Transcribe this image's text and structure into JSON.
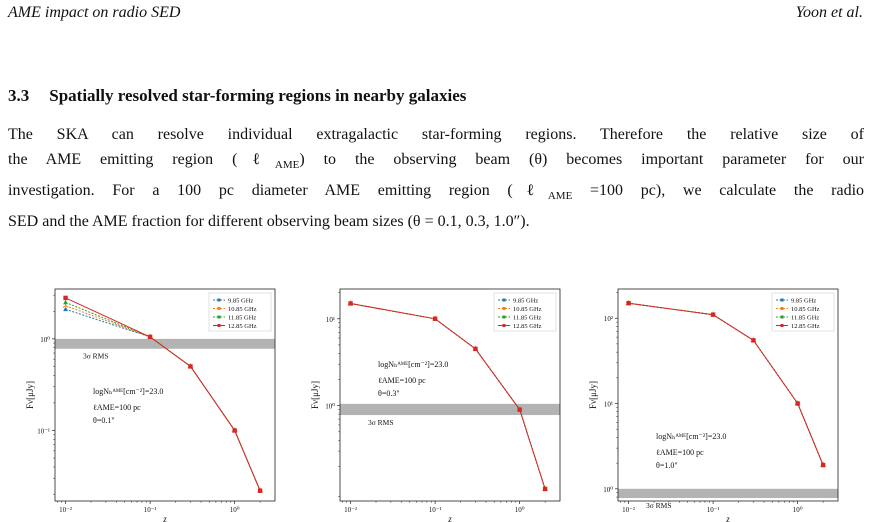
{
  "header": {
    "left": "AME impact on radio SED",
    "right": "Yoon et al."
  },
  "section": {
    "number": "3.3",
    "title": "Spatially resolved star-forming regions in nearby galaxies"
  },
  "paragraph": {
    "l1": "The SKA can resolve individual extragalactic star-forming regions.  Therefore the relative size of",
    "l2a": "the AME emitting region (ℓ",
    "l2sub": "AME",
    "l2b": ") to the observing beam (θ) becomes important parameter for our",
    "l3a": "investigation.  For a 100 pc diameter AME emitting region (ℓ",
    "l3sub": "AME",
    "l3b": " =100 pc), we calculate the radio",
    "l4": "SED and the AME fraction for different observing beam sizes (θ = 0.1, 0.3, 1.0″)."
  },
  "chart_data": [
    {
      "type": "line",
      "xscale": "log",
      "yscale": "log",
      "xlim": [
        0.0075,
        3.0
      ],
      "ylim": [
        0.017,
        3.5
      ],
      "xticks": [
        0.01,
        0.1,
        1
      ],
      "xticklabels": [
        "10⁻²",
        "10⁻¹",
        "10⁰"
      ],
      "yticks": [
        0.1,
        1
      ],
      "yticklabels": [
        "10⁻¹",
        "10⁰"
      ],
      "xlabel": "z",
      "ylabel": "Fν[μJy]",
      "rms_band": [
        0.78,
        1.0
      ],
      "rms_label": "3σ RMS",
      "annotation": [
        "logNₕᴬᴹᴱ[cm⁻²]=23.0",
        "ℓAME=100 pc",
        "θ=0.1\""
      ],
      "legend": "upper right",
      "series": [
        {
          "name": "9.85 GHz",
          "color": "#1f77b4",
          "marker": "triangle",
          "x": [
            0.01,
            0.1,
            0.3,
            1,
            2
          ],
          "y": [
            2.1,
            1.05,
            0.5,
            0.1,
            0.022
          ]
        },
        {
          "name": "10.85 GHz",
          "color": "#ff7f0e",
          "marker": "tri",
          "x": [
            0.01,
            0.1,
            0.3,
            1,
            2
          ],
          "y": [
            2.3,
            1.05,
            0.5,
            0.1,
            0.022
          ]
        },
        {
          "name": "11.85 GHz",
          "color": "#2ca02c",
          "marker": "triangle",
          "x": [
            0.01,
            0.1,
            0.3,
            1,
            2
          ],
          "y": [
            2.5,
            1.05,
            0.5,
            0.1,
            0.022
          ]
        },
        {
          "name": "12.85 GHz",
          "color": "#d62728",
          "marker": "square",
          "x": [
            0.01,
            0.1,
            0.3,
            1,
            2
          ],
          "y": [
            2.8,
            1.05,
            0.5,
            0.1,
            0.022
          ]
        }
      ]
    },
    {
      "type": "line",
      "xscale": "log",
      "yscale": "log",
      "xlim": [
        0.0075,
        3.0
      ],
      "ylim": [
        0.08,
        22
      ],
      "xticks": [
        0.01,
        0.1,
        1
      ],
      "xticklabels": [
        "10⁻²",
        "10⁻¹",
        "10⁰"
      ],
      "yticks": [
        1,
        10
      ],
      "yticklabels": [
        "10⁰",
        "10¹"
      ],
      "xlabel": "z",
      "ylabel": "Fν[μJy]",
      "rms_band": [
        0.78,
        1.05
      ],
      "rms_label": "3σ RMS",
      "annotation": [
        "logNₕᴬᴹᴱ[cm⁻²]=23.0",
        "ℓAME=100 pc",
        "θ=0.3\""
      ],
      "legend": "upper right",
      "series": [
        {
          "name": "9.85 GHz",
          "color": "#1f77b4",
          "marker": "triangle",
          "x": [
            0.01,
            0.1,
            0.3,
            1,
            2
          ],
          "y": [
            15,
            10,
            4.5,
            0.9,
            0.11
          ]
        },
        {
          "name": "10.85 GHz",
          "color": "#ff7f0e",
          "marker": "tri",
          "x": [
            0.01,
            0.1,
            0.3,
            1,
            2
          ],
          "y": [
            15,
            10,
            4.5,
            0.9,
            0.11
          ]
        },
        {
          "name": "11.85 GHz",
          "color": "#2ca02c",
          "marker": "triangle",
          "x": [
            0.01,
            0.1,
            0.3,
            1,
            2
          ],
          "y": [
            15,
            10,
            4.5,
            0.9,
            0.11
          ]
        },
        {
          "name": "12.85 GHz",
          "color": "#d62728",
          "marker": "square",
          "x": [
            0.01,
            0.1,
            0.3,
            1,
            2
          ],
          "y": [
            15,
            10,
            4.5,
            0.9,
            0.11
          ]
        }
      ]
    },
    {
      "type": "line",
      "xscale": "log",
      "yscale": "log",
      "xlim": [
        0.0075,
        3.0
      ],
      "ylim": [
        0.72,
        220
      ],
      "xticks": [
        0.01,
        0.1,
        1
      ],
      "xticklabels": [
        "10⁻²",
        "10⁻¹",
        "10⁰"
      ],
      "yticks": [
        1,
        10,
        100
      ],
      "yticklabels": [
        "10⁰",
        "10¹",
        "10²"
      ],
      "xlabel": "z",
      "ylabel": "Fν[μJy]",
      "rms_band": [
        0.78,
        1.0
      ],
      "rms_label": "3σ RMS",
      "annotation": [
        "logNₕᴬᴹᴱ[cm⁻²]=23.0",
        "ℓAME=100 pc",
        "θ=1.0\""
      ],
      "legend": "upper right",
      "series": [
        {
          "name": "9.85 GHz",
          "color": "#1f77b4",
          "marker": "triangle",
          "x": [
            0.01,
            0.1,
            0.3,
            1,
            2
          ],
          "y": [
            150,
            110,
            55,
            10,
            1.9
          ]
        },
        {
          "name": "10.85 GHz",
          "color": "#ff7f0e",
          "marker": "tri",
          "x": [
            0.01,
            0.1,
            0.3,
            1,
            2
          ],
          "y": [
            150,
            110,
            55,
            10,
            1.9
          ]
        },
        {
          "name": "11.85 GHz",
          "color": "#2ca02c",
          "marker": "triangle",
          "x": [
            0.01,
            0.1,
            0.3,
            1,
            2
          ],
          "y": [
            150,
            110,
            55,
            10,
            1.9
          ]
        },
        {
          "name": "12.85 GHz",
          "color": "#d62728",
          "marker": "square",
          "x": [
            0.01,
            0.1,
            0.3,
            1,
            2
          ],
          "y": [
            150,
            110,
            55,
            10,
            1.9
          ]
        }
      ]
    }
  ]
}
